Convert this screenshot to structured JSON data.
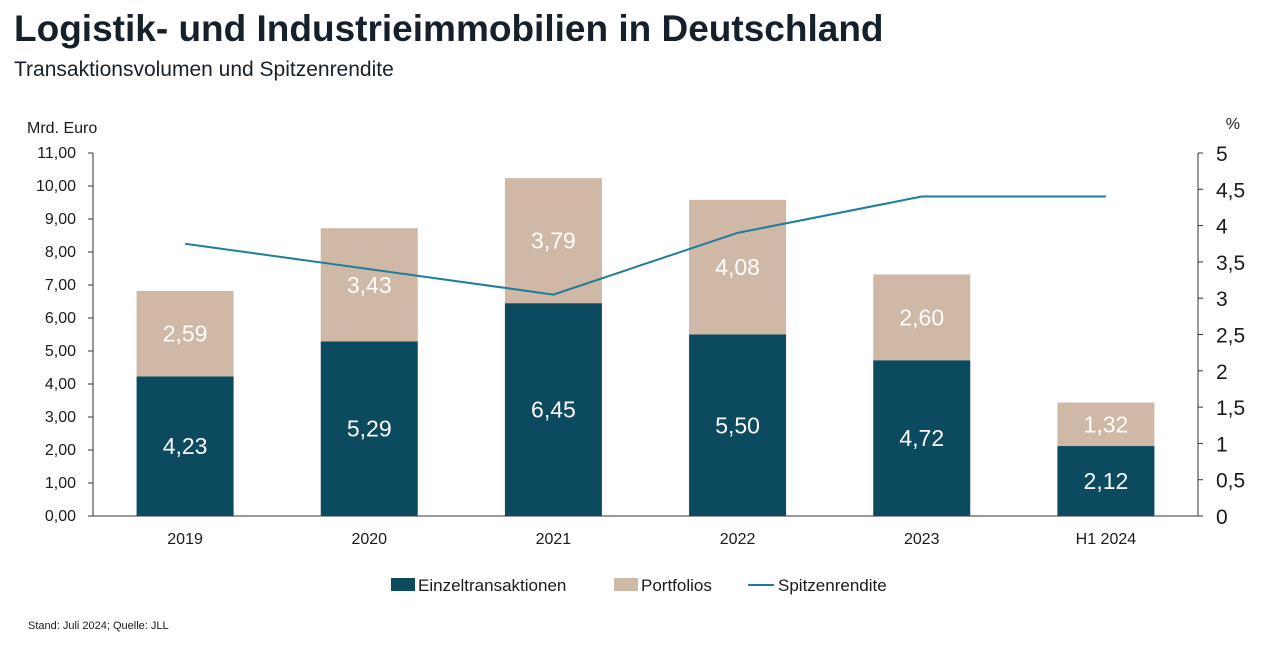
{
  "title": "Logistik- und Industrieimmobilien in Deutschland",
  "subtitle": "Transaktionsvolumen und Spitzenrendite",
  "footer": "Stand: Juli 2024; Quelle: JLL",
  "colors": {
    "einzel": "#0b4a5f",
    "portfolios": "#d0b8a7",
    "line": "#1f7d9c",
    "axis": "#333333"
  },
  "chart_data": {
    "type": "bar",
    "stacked": true,
    "categories": [
      "2019",
      "2020",
      "2021",
      "2022",
      "2023",
      "H1 2024"
    ],
    "series": [
      {
        "name": "Einzeltransaktionen",
        "values": [
          4.23,
          5.29,
          6.45,
          5.5,
          4.72,
          2.12
        ],
        "labels": [
          "4,23",
          "5,29",
          "6,45",
          "5,50",
          "4,72",
          "2,12"
        ]
      },
      {
        "name": "Portfolios",
        "values": [
          2.59,
          3.43,
          3.79,
          4.08,
          2.6,
          1.32
        ],
        "labels": [
          "2,59",
          "3,43",
          "3,79",
          "4,08",
          "2,60",
          "1,32"
        ]
      }
    ],
    "line_series": {
      "name": "Spitzenrendite",
      "type": "line",
      "axis": "right",
      "values": [
        3.75,
        3.4,
        3.05,
        3.9,
        4.4,
        4.4
      ]
    },
    "ylabel_left": "Mrd. Euro",
    "ylabel_right": "%",
    "ylim_left": [
      0,
      11
    ],
    "ylim_right": [
      0,
      5
    ],
    "left_ticks": [
      "0,00",
      "1,00",
      "2,00",
      "3,00",
      "4,00",
      "5,00",
      "6,00",
      "7,00",
      "8,00",
      "9,00",
      "10,00",
      "11,00"
    ],
    "right_ticks": [
      "0",
      "0,5",
      "1",
      "1,5",
      "2",
      "2,5",
      "3",
      "3,5",
      "4",
      "4,5",
      "5"
    ],
    "grid": false,
    "legend_position": "bottom"
  }
}
